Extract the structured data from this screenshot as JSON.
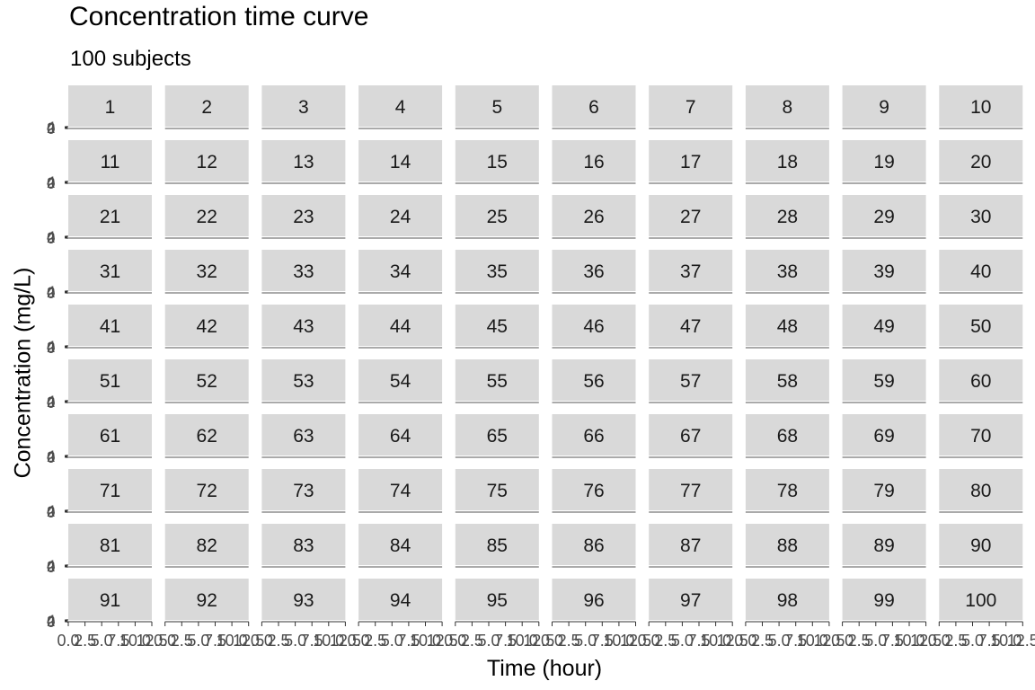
{
  "chart_data": {
    "type": "line",
    "title": "Concentration time curve",
    "subtitle": "100 subjects",
    "xlabel": "Time (hour)",
    "ylabel": "Concentration (mg/L)",
    "facet_layout": {
      "rows": 10,
      "cols": 10
    },
    "panels": [
      "1",
      "2",
      "3",
      "4",
      "5",
      "6",
      "7",
      "8",
      "9",
      "10",
      "11",
      "12",
      "13",
      "14",
      "15",
      "16",
      "17",
      "18",
      "19",
      "20",
      "21",
      "22",
      "23",
      "24",
      "25",
      "26",
      "27",
      "28",
      "29",
      "30",
      "31",
      "32",
      "33",
      "34",
      "35",
      "36",
      "37",
      "38",
      "39",
      "40",
      "41",
      "42",
      "43",
      "44",
      "45",
      "46",
      "47",
      "48",
      "49",
      "50",
      "51",
      "52",
      "53",
      "54",
      "55",
      "56",
      "57",
      "58",
      "59",
      "60",
      "61",
      "62",
      "63",
      "64",
      "65",
      "66",
      "67",
      "68",
      "69",
      "70",
      "71",
      "72",
      "73",
      "74",
      "75",
      "76",
      "77",
      "78",
      "79",
      "80",
      "81",
      "82",
      "83",
      "84",
      "85",
      "86",
      "87",
      "88",
      "89",
      "90",
      "91",
      "92",
      "93",
      "94",
      "95",
      "96",
      "97",
      "98",
      "99",
      "100"
    ],
    "x_ticks": [
      "0.0",
      "2.5",
      "5.0",
      "7.5",
      "10.0",
      "12.5"
    ],
    "xlim": [
      0,
      12.5
    ],
    "y_ticks": [
      "0",
      "2",
      "4"
    ],
    "ylim": [
      0,
      4
    ],
    "grid": false,
    "strip_color": "#d9d9d9"
  }
}
